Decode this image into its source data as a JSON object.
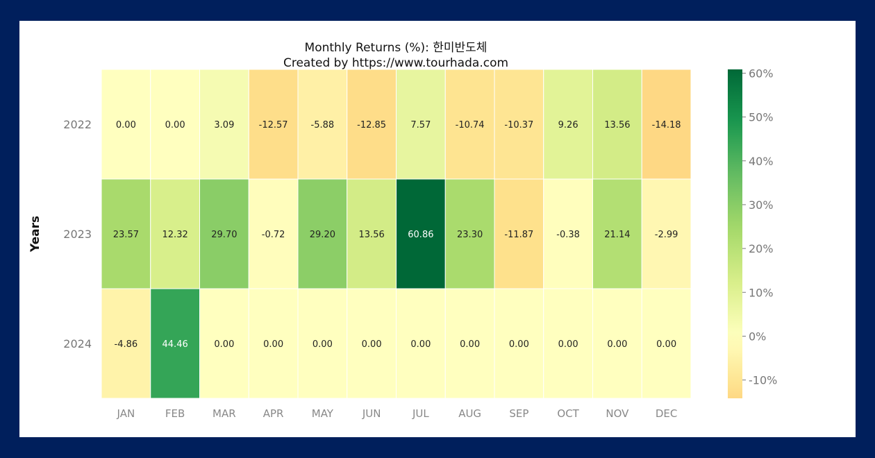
{
  "chart_data": {
    "type": "heatmap",
    "title_lines": [
      "Monthly Returns (%): 한미반도체",
      "Created by https://www.tourhada.com"
    ],
    "ylabel": "Years",
    "xlabel": "",
    "x": [
      "JAN",
      "FEB",
      "MAR",
      "APR",
      "MAY",
      "JUN",
      "JUL",
      "AUG",
      "SEP",
      "OCT",
      "NOV",
      "DEC"
    ],
    "y": [
      "2022",
      "2023",
      "2024"
    ],
    "values": [
      [
        0.0,
        0.0,
        3.09,
        -12.57,
        -5.88,
        -12.85,
        7.57,
        -10.74,
        -10.37,
        9.26,
        13.56,
        -14.18
      ],
      [
        23.57,
        12.32,
        29.7,
        -0.72,
        29.2,
        13.56,
        60.86,
        23.3,
        -11.87,
        -0.38,
        21.14,
        -2.99
      ],
      [
        -4.86,
        44.46,
        0.0,
        0.0,
        0.0,
        0.0,
        0.0,
        0.0,
        0.0,
        0.0,
        0.0,
        0.0
      ]
    ],
    "colormap": "RdYlGn (centered at 0)",
    "color_range": [
      -14.18,
      60.86
    ],
    "colorbar_ticks": [
      60,
      50,
      40,
      30,
      20,
      10,
      0,
      -10
    ],
    "colorbar_tick_format": "{v}%",
    "value_format": "2 decimals",
    "grid": false,
    "legend": "colorbar-right"
  }
}
